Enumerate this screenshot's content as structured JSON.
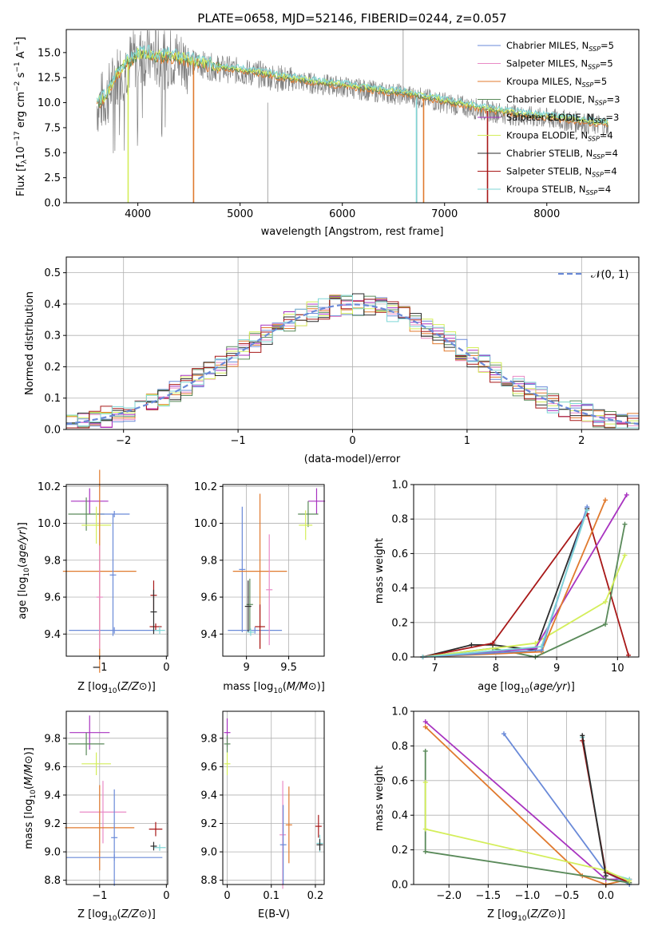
{
  "colors": {
    "Chabrier MILES": "#6a8ad8",
    "Salpeter MILES": "#e98ac6",
    "Kroupa MILES": "#e07a2e",
    "Chabrier ELODIE": "#5a8a5a",
    "Salpeter ELODIE": "#a833c0",
    "Kroupa ELODIE": "#d4ee5a",
    "Chabrier STELIB": "#2b2b2b",
    "Salpeter STELIB": "#a81818",
    "Kroupa STELIB": "#7fd6d6",
    "data": "#808080",
    "grid": "#b0b0b0"
  },
  "chart_data": [
    {
      "id": "spectrum",
      "type": "line",
      "title": "PLATE=0658, MJD=52146, FIBERID=0244, z=0.057",
      "xlabel": "wavelength [Angstrom, rest frame]",
      "ylabel_parts": [
        "Flux [f",
        "λ",
        "10",
        "−17",
        " erg cm",
        "−2",
        " s",
        "−1",
        " A",
        "−1",
        "]"
      ],
      "xlim": [
        3300,
        8900
      ],
      "ylim": [
        0,
        17.3
      ],
      "xticks": [
        4000,
        5000,
        6000,
        7000,
        8000
      ],
      "yticks": [
        0.0,
        2.5,
        5.0,
        7.5,
        10.0,
        12.5,
        15.0
      ],
      "legend": [
        {
          "label": "Chabrier MILES, N",
          "sub": "SSP",
          "tail": "=5",
          "key": "Chabrier MILES"
        },
        {
          "label": "Salpeter MILES, N",
          "sub": "SSP",
          "tail": "=5",
          "key": "Salpeter MILES"
        },
        {
          "label": "Kroupa MILES, N",
          "sub": "SSP",
          "tail": "=5",
          "key": "Kroupa MILES"
        },
        {
          "label": "Chabrier ELODIE, N",
          "sub": "SSP",
          "tail": "=3",
          "key": "Chabrier ELODIE"
        },
        {
          "label": "Salpeter ELODIE, N",
          "sub": "SSP",
          "tail": "=3",
          "key": "Salpeter ELODIE"
        },
        {
          "label": "Kroupa ELODIE, N",
          "sub": "SSP",
          "tail": "=4",
          "key": "Kroupa ELODIE"
        },
        {
          "label": "Chabrier STELIB, N",
          "sub": "SSP",
          "tail": "=4",
          "key": "Chabrier STELIB"
        },
        {
          "label": "Salpeter STELIB, N",
          "sub": "SSP",
          "tail": "=4",
          "key": "Salpeter STELIB"
        },
        {
          "label": "Kroupa STELIB, N",
          "sub": "SSP",
          "tail": "=4",
          "key": "Kroupa STELIB"
        }
      ],
      "model_envelope": {
        "x": [
          3600,
          3700,
          3800,
          3900,
          4000,
          4100,
          4200,
          4300,
          4400,
          4500,
          4600,
          4700,
          4800,
          4900,
          5000,
          5200,
          5400,
          5600,
          5800,
          6000,
          6200,
          6400,
          6600,
          6800,
          7000,
          7200,
          7400,
          7600,
          7800,
          8000,
          8200,
          8400,
          8600
        ],
        "y": [
          9.7,
          10.6,
          12.8,
          13.8,
          14.6,
          14.7,
          14.4,
          14.5,
          14.3,
          14.0,
          13.9,
          13.6,
          13.4,
          13.3,
          13.1,
          12.8,
          12.4,
          12.1,
          11.8,
          11.6,
          11.3,
          11.0,
          10.8,
          10.4,
          10.0,
          9.6,
          9.2,
          8.9,
          8.6,
          8.4,
          8.2,
          7.9,
          7.7
        ]
      },
      "model_dips": [
        {
          "series": "Kroupa ELODIE",
          "x": 3905
        },
        {
          "series": "Kroupa MILES",
          "x": 4545
        },
        {
          "series": "Kroupa STELIB",
          "x": 6725
        },
        {
          "series": "Kroupa MILES",
          "x": 6795
        },
        {
          "series": "Salpeter STELIB",
          "x": 7420
        }
      ]
    },
    {
      "id": "residuals",
      "type": "histogram",
      "xlabel": "(data-model)/error",
      "ylabel": "Normed distribution",
      "xlim": [
        -2.5,
        2.5
      ],
      "ylim": [
        0,
        0.55
      ],
      "xticks": [
        -2,
        -1,
        0,
        1,
        2
      ],
      "xtick_labels": [
        "−2",
        "−1",
        "0",
        "1",
        "2"
      ],
      "yticks": [
        0.0,
        0.1,
        0.2,
        0.3,
        0.4,
        0.5
      ],
      "legend": "𝒩(0, 1)",
      "normal": {
        "mu": 0,
        "sigma": 1
      }
    },
    {
      "id": "age_vs_Z",
      "type": "scatter",
      "xlabel": "Z [log10(Z/Z⊙)]",
      "ylabel": "age  [log10(age/yr)]",
      "xlim": [
        -1.5,
        0.02
      ],
      "ylim": [
        9.28,
        10.21
      ],
      "xticks": [
        -1,
        0
      ],
      "xtick_labels": [
        "−1",
        "0"
      ],
      "yticks": [
        9.4,
        9.6,
        9.8,
        10.0,
        10.2
      ],
      "points": [
        {
          "series": "Salpeter ELODIE",
          "x": -1.15,
          "y": 10.12,
          "ex": 0.28,
          "ey": 0.07
        },
        {
          "series": "Chabrier ELODIE",
          "x": -1.2,
          "y": 10.05,
          "ex": 0.27,
          "ey": 0.09
        },
        {
          "series": "Kroupa ELODIE",
          "x": -1.05,
          "y": 9.99,
          "ex": 0.22,
          "ey": 0.1
        },
        {
          "series": "Chabrier MILES",
          "x": -0.78,
          "y": 10.05,
          "ex": 0.23,
          "ey": 0.0
        },
        {
          "series": "Chabrier MILES",
          "x": -0.78,
          "y": 9.42,
          "ex": 0.68,
          "ey": 0.0
        },
        {
          "series": "Kroupa MILES",
          "x": -1.0,
          "y": 9.74,
          "ex": 0.55,
          "ey": 0.55
        },
        {
          "series": "Salpeter MILES",
          "x": -1.0,
          "y": 9.6,
          "ex": 0.0,
          "ey": 0.28
        },
        {
          "series": "Chabrier MILES",
          "x": -0.8,
          "y": 9.72,
          "ex": 0.0,
          "ey": 0.33
        },
        {
          "series": "Salpeter STELIB",
          "x": -0.16,
          "y": 9.44,
          "ex": 0.09,
          "ey": 0.0
        },
        {
          "series": "Salpeter STELIB",
          "x": -0.19,
          "y": 9.61,
          "ex": 0.0,
          "ey": 0.08
        },
        {
          "series": "Chabrier STELIB",
          "x": -0.19,
          "y": 9.52,
          "ex": 0.0,
          "ey": 0.12
        },
        {
          "series": "Kroupa STELIB",
          "x": -0.1,
          "y": 9.42,
          "ex": 0.08,
          "ey": 0.02
        }
      ]
    },
    {
      "id": "age_vs_mass",
      "type": "scatter",
      "xlabel": "mass [log10(M/M⊙)]",
      "ylabel": "",
      "xlim": [
        8.72,
        9.92
      ],
      "ylim": [
        9.28,
        10.21
      ],
      "xticks": [
        9.0,
        9.5
      ],
      "yticks": [
        9.4,
        9.6,
        9.8,
        10.0,
        10.2
      ],
      "points": [
        {
          "series": "Salpeter ELODIE",
          "x": 9.83,
          "y": 10.12,
          "ex": 0.1,
          "ey": 0.07
        },
        {
          "series": "Chabrier ELODIE",
          "x": 9.73,
          "y": 10.05,
          "ex": 0.12,
          "ey": 0.07
        },
        {
          "series": "Kroupa ELODIE",
          "x": 9.7,
          "y": 9.99,
          "ex": 0.08,
          "ey": 0.08
        },
        {
          "series": "Chabrier MILES",
          "x": 8.95,
          "y": 9.75,
          "ex": 0.0,
          "ey": 0.34
        },
        {
          "series": "Chabrier MILES",
          "x": 9.1,
          "y": 9.42,
          "ex": 0.32,
          "ey": 0.0
        },
        {
          "series": "Kroupa MILES",
          "x": 9.16,
          "y": 9.74,
          "ex": 0.32,
          "ey": 0.42
        },
        {
          "series": "Salpeter MILES",
          "x": 9.27,
          "y": 9.64,
          "ex": 0.0,
          "ey": 0.3
        },
        {
          "series": "Chabrier ELODIE",
          "x": 9.04,
          "y": 9.56,
          "ex": 0.0,
          "ey": 0.14
        },
        {
          "series": "Chabrier STELIB",
          "x": 9.02,
          "y": 9.55,
          "ex": 0.0,
          "ey": 0.14
        },
        {
          "series": "Salpeter STELIB",
          "x": 9.16,
          "y": 9.44,
          "ex": 0.06,
          "ey": 0.12
        },
        {
          "series": "Kroupa STELIB",
          "x": 9.05,
          "y": 9.41,
          "ex": 0.04,
          "ey": 0.02
        }
      ]
    },
    {
      "id": "mass_weight_vs_age",
      "type": "line",
      "xlabel": "age  [log10(age/yr)]",
      "ylabel": "mass weight",
      "xlim": [
        6.65,
        10.35
      ],
      "ylim": [
        0,
        1.0
      ],
      "xticks": [
        7,
        8,
        9,
        10
      ],
      "yticks": [
        0.0,
        0.2,
        0.4,
        0.6,
        0.8,
        1.0
      ],
      "series": [
        {
          "key": "Chabrier STELIB",
          "x": [
            6.8,
            7.6,
            7.95,
            8.65,
            9.5
          ],
          "y": [
            0.0,
            0.07,
            0.07,
            0.04,
            0.86
          ]
        },
        {
          "key": "Salpeter STELIB",
          "x": [
            6.8,
            7.95,
            9.5,
            10.18
          ],
          "y": [
            0.0,
            0.08,
            0.83,
            0.01
          ]
        },
        {
          "key": "Chabrier ELODIE",
          "x": [
            6.8,
            7.95,
            8.65,
            9.8,
            10.12
          ],
          "y": [
            0.0,
            0.05,
            0.0,
            0.19,
            0.77
          ]
        },
        {
          "key": "Kroupa ELODIE",
          "x": [
            6.8,
            8.65,
            9.8,
            10.12
          ],
          "y": [
            0.0,
            0.08,
            0.32,
            0.59
          ]
        },
        {
          "key": "Salpeter ELODIE",
          "x": [
            6.8,
            8.65,
            10.15
          ],
          "y": [
            0.0,
            0.05,
            0.94
          ]
        },
        {
          "key": "Kroupa MILES",
          "x": [
            6.8,
            8.75,
            9.8
          ],
          "y": [
            0.0,
            0.03,
            0.91
          ]
        },
        {
          "key": "Chabrier MILES",
          "x": [
            6.8,
            8.75,
            9.5
          ],
          "y": [
            0.0,
            0.04,
            0.87
          ]
        },
        {
          "key": "Kroupa STELIB",
          "x": [
            6.8,
            8.75,
            9.5
          ],
          "y": [
            0.0,
            0.06,
            0.85
          ]
        }
      ]
    },
    {
      "id": "mass_vs_Z",
      "type": "scatter",
      "xlabel": "Z [log10(Z/Z⊙)]",
      "ylabel": "mass [log10(M/M⊙)]",
      "xlim": [
        -1.5,
        0.02
      ],
      "ylim": [
        8.77,
        9.99
      ],
      "xticks": [
        -1,
        0
      ],
      "xtick_labels": [
        "−1",
        "0"
      ],
      "yticks": [
        8.8,
        9.0,
        9.2,
        9.4,
        9.6,
        9.8
      ],
      "points": [
        {
          "series": "Salpeter ELODIE",
          "x": -1.15,
          "y": 9.84,
          "ex": 0.3,
          "ey": 0.12
        },
        {
          "series": "Chabrier ELODIE",
          "x": -1.2,
          "y": 9.76,
          "ex": 0.27,
          "ey": 0.08
        },
        {
          "series": "Kroupa ELODIE",
          "x": -1.05,
          "y": 9.62,
          "ex": 0.22,
          "ey": 0.08
        },
        {
          "series": "Salpeter MILES",
          "x": -0.95,
          "y": 9.28,
          "ex": 0.35,
          "ey": 0.22
        },
        {
          "series": "Kroupa MILES",
          "x": -1.0,
          "y": 9.17,
          "ex": 0.52,
          "ey": 0.3
        },
        {
          "series": "Chabrier MILES",
          "x": -0.78,
          "y": 8.96,
          "ex": 0.72,
          "ey": 0.0
        },
        {
          "series": "Chabrier MILES",
          "x": -0.78,
          "y": 9.1,
          "ex": 0.0,
          "ey": 0.34
        },
        {
          "series": "Salpeter STELIB",
          "x": -0.16,
          "y": 9.16,
          "ex": 0.1,
          "ey": 0.05
        },
        {
          "series": "Kroupa STELIB",
          "x": -0.1,
          "y": 9.03,
          "ex": 0.09,
          "ey": 0.01
        },
        {
          "series": "Chabrier STELIB",
          "x": -0.19,
          "y": 9.04,
          "ex": 0.0,
          "ey": 0.03
        }
      ]
    },
    {
      "id": "mass_vs_EBV",
      "type": "scatter",
      "xlabel": "E(B-V)",
      "ylabel": "",
      "xlim": [
        -0.01,
        0.22
      ],
      "ylim": [
        8.77,
        9.99
      ],
      "xticks": [
        0.0,
        0.1,
        0.2
      ],
      "yticks": [
        8.8,
        9.0,
        9.2,
        9.4,
        9.6,
        9.8
      ],
      "points": [
        {
          "series": "Salpeter ELODIE",
          "x": 0.0,
          "y": 9.84,
          "ex": 0.0,
          "ey": 0.1
        },
        {
          "series": "Chabrier ELODIE",
          "x": 0.0,
          "y": 9.76,
          "ex": 0.0,
          "ey": 0.06
        },
        {
          "series": "Kroupa ELODIE",
          "x": 0.0,
          "y": 9.62,
          "ex": 0.0,
          "ey": 0.08
        },
        {
          "series": "Salpeter MILES",
          "x": 0.126,
          "y": 9.12,
          "ex": 0.0,
          "ey": 0.38
        },
        {
          "series": "Chabrier MILES",
          "x": 0.127,
          "y": 9.05,
          "ex": 0.0,
          "ey": 0.28
        },
        {
          "series": "Kroupa MILES",
          "x": 0.14,
          "y": 9.19,
          "ex": 0.0,
          "ey": 0.27
        },
        {
          "series": "Salpeter STELIB",
          "x": 0.207,
          "y": 9.18,
          "ex": 0.0,
          "ey": 0.08
        },
        {
          "series": "Kroupa STELIB",
          "x": 0.21,
          "y": 9.06,
          "ex": 0.0,
          "ey": 0.06
        },
        {
          "series": "Chabrier STELIB",
          "x": 0.21,
          "y": 9.05,
          "ex": 0.0,
          "ey": 0.04
        }
      ]
    },
    {
      "id": "mass_weight_vs_Z",
      "type": "line",
      "xlabel": "Z [log10(Z/Z⊙)]",
      "ylabel": "mass weight",
      "xlim": [
        -2.45,
        0.42
      ],
      "ylim": [
        0,
        1.0
      ],
      "xticks": [
        -2.0,
        -1.5,
        -1.0,
        -0.5,
        0.0
      ],
      "xtick_labels": [
        "−2.0",
        "−1.5",
        "−1.0",
        "−0.5",
        "0.0"
      ],
      "yticks": [
        0.0,
        0.2,
        0.4,
        0.6,
        0.8,
        1.0
      ],
      "series": [
        {
          "key": "Salpeter ELODIE",
          "x": [
            -2.3,
            0.0,
            0.3
          ],
          "y": [
            0.94,
            0.03,
            0.03
          ]
        },
        {
          "key": "Kroupa MILES",
          "x": [
            -2.3,
            -0.3,
            0.0,
            0.3
          ],
          "y": [
            0.91,
            0.05,
            0.0,
            0.03
          ]
        },
        {
          "key": "Chabrier MILES",
          "x": [
            -1.3,
            0.0,
            0.3
          ],
          "y": [
            0.87,
            0.07,
            0.0
          ]
        },
        {
          "key": "Kroupa STELIB",
          "x": [
            -0.3,
            0.0,
            0.3
          ],
          "y": [
            0.85,
            0.07,
            0.03
          ]
        },
        {
          "key": "Salpeter STELIB",
          "x": [
            -0.3,
            0.0,
            0.3
          ],
          "y": [
            0.83,
            0.07,
            0.01
          ]
        },
        {
          "key": "Chabrier ELODIE",
          "x": [
            -2.3,
            -2.3,
            0.3
          ],
          "y": [
            0.77,
            0.19,
            0.01
          ]
        },
        {
          "key": "Kroupa ELODIE",
          "x": [
            -2.3,
            -2.3,
            0.0,
            0.3
          ],
          "y": [
            0.59,
            0.32,
            0.08,
            0.02
          ]
        },
        {
          "key": "Chabrier STELIB",
          "x": [
            -0.3,
            0.0
          ],
          "y": [
            0.86,
            0.05
          ]
        }
      ]
    }
  ]
}
